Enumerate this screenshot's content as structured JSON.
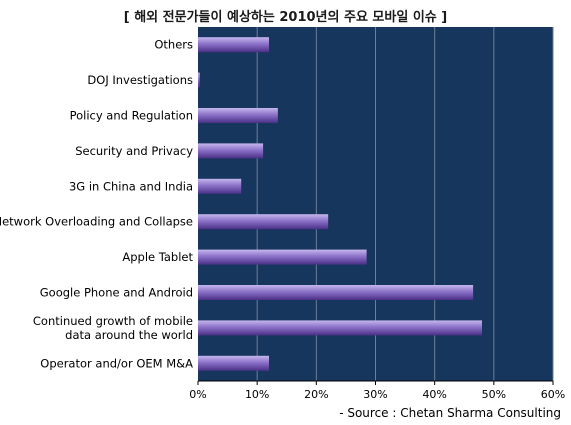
{
  "chart_data": {
    "type": "bar",
    "orientation": "horizontal",
    "title": "[ 해외 전문가들이 예상하는 2010년의 주요 모바일 이슈 ]",
    "categories": [
      "Others",
      "DOJ Investigations",
      "Policy and Regulation",
      "Security and Privacy",
      "3G in China and India",
      "Network Overloading  and Collapse",
      "Apple Tablet",
      "Google Phone and Android",
      "Continued growth of mobile\ndata around the world",
      "Operator and/or OEM M&A"
    ],
    "values": [
      12,
      0.3,
      13.5,
      11,
      7.3,
      22,
      28.5,
      46.5,
      48,
      12
    ],
    "xlim": [
      0,
      60
    ],
    "xticks": [
      "0%",
      "10%",
      "20%",
      "30%",
      "40%",
      "50%",
      "60%"
    ],
    "grid": true,
    "source": "- Source : Chetan Sharma Consulting",
    "colors": {
      "plot_background": "#17365d",
      "bar_light": "#c5b6ee",
      "bar_mid": "#8c72c8",
      "bar_dark": "#4a2f86",
      "grid": "#6c7e98"
    }
  }
}
